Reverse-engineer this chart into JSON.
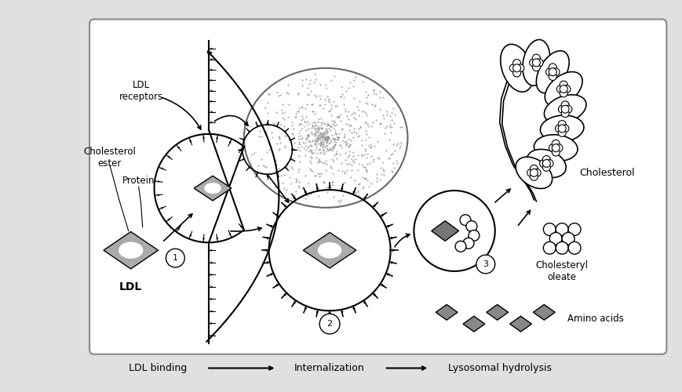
{
  "bg_color": "#e0e0e0",
  "panel_border": "#888888",
  "blue_gray": "#2c2c50",
  "step_labels": [
    "LDL binding",
    "Internalization",
    "Lysosomal hydrolysis"
  ],
  "labels": {
    "ldl_receptors": "LDL\nreceptors",
    "cholesterol_ester": "Cholesterol\nester",
    "protein": "Protein",
    "ldl": "LDL",
    "cholesterol": "Cholesterol",
    "cholesteryl_oleate": "Cholesteryl\noleate",
    "amino_acids": "Amino acids"
  }
}
